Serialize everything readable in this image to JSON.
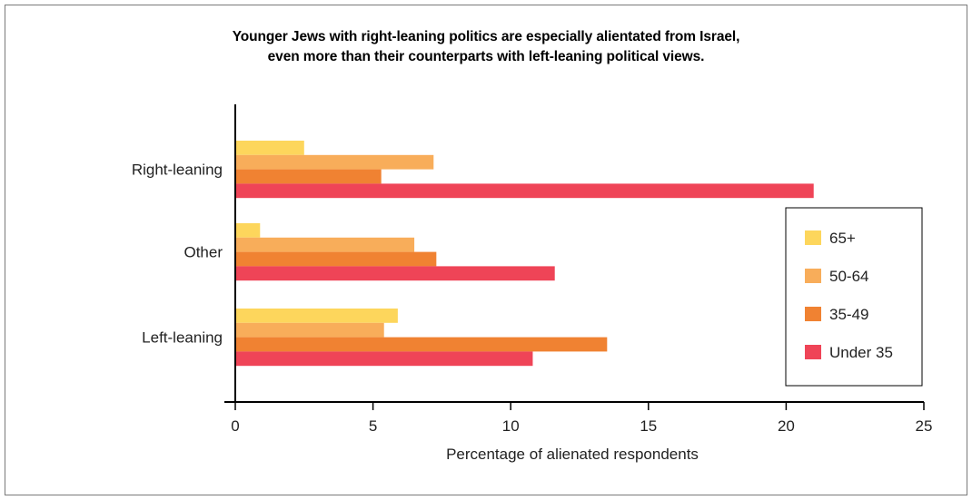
{
  "chart_data": {
    "type": "bar",
    "orientation": "horizontal",
    "title_lines": [
      "Younger Jews with right-leaning politics are especially alientated from Israel,",
      "even more than their counterparts with left-leaning political views."
    ],
    "categories": [
      "Right-leaning",
      "Other",
      "Left-leaning"
    ],
    "series": [
      {
        "name": "65+",
        "color": "#fdd65c",
        "values": [
          2.5,
          0.9,
          5.9
        ]
      },
      {
        "name": "50-64",
        "color": "#f8ad5a",
        "values": [
          7.2,
          6.5,
          5.4
        ]
      },
      {
        "name": "35-49",
        "color": "#f08232",
        "values": [
          5.3,
          7.3,
          13.5
        ]
      },
      {
        "name": "Under 35",
        "color": "#ef4457",
        "values": [
          21.0,
          11.6,
          10.8
        ]
      }
    ],
    "xlabel": "Percentage of alienated respondents",
    "xlim": [
      0,
      25
    ],
    "xticks": [
      0,
      5,
      10,
      15,
      20,
      25
    ],
    "grid": false,
    "legend_position": "right"
  }
}
